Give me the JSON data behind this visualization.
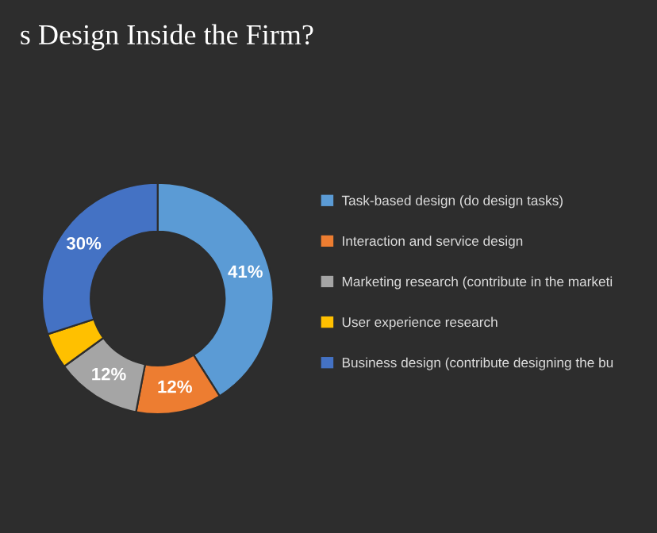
{
  "chart_data": {
    "type": "donut",
    "title": "s Design Inside the Firm?",
    "categories": [
      "Task-based design (do design tasks)",
      "Interaction and service design",
      "Marketing research (contribute in the marketi",
      "User experience research",
      "Business design (contribute designing the bu"
    ],
    "values": [
      41,
      12,
      12,
      5,
      30
    ],
    "colors": [
      "#5b9bd5",
      "#ed7d31",
      "#a5a5a5",
      "#ffc000",
      "#4472c4"
    ],
    "value_labels": [
      "41%",
      "12%",
      "12%",
      null,
      "30%"
    ],
    "legend": "right"
  }
}
